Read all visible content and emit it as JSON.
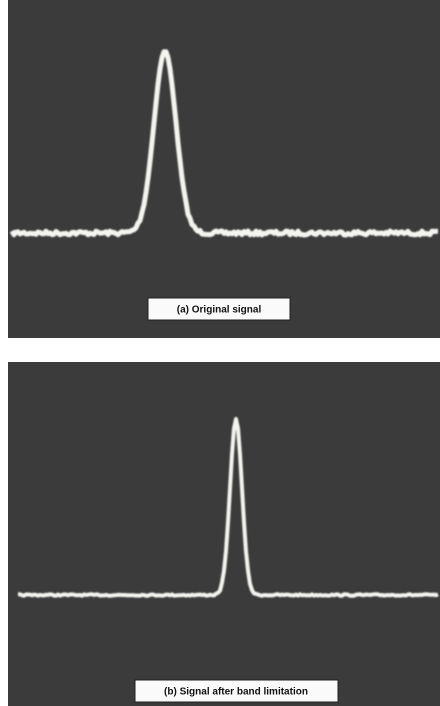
{
  "panels": [
    {
      "caption": "(a) Original signal"
    },
    {
      "caption": "(b) Signal after band limitation"
    }
  ]
}
